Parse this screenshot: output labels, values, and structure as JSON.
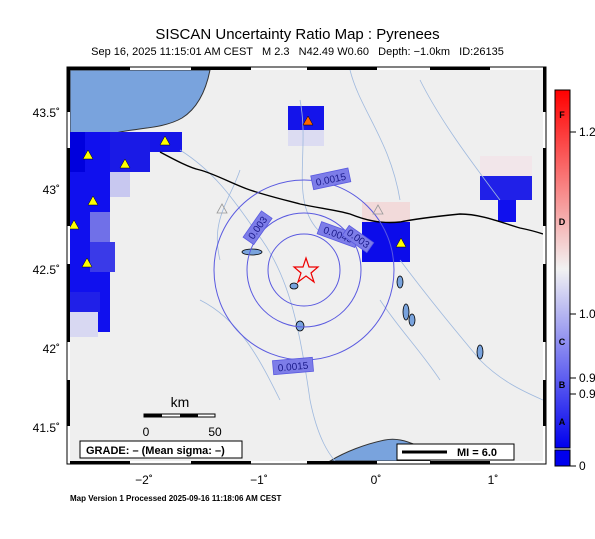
{
  "header": {
    "title": "SISCAN Uncertainty Ratio Map : Pyrenees",
    "subtitle": "Sep 16, 2025 11:15:01 AM CEST   M 2.3   N42.49 W0.60   Depth: −1.0km   ID:26135"
  },
  "axes": {
    "lat_labels": [
      "43.5˚",
      "43˚",
      "42.5˚",
      "42˚",
      "41.5˚"
    ],
    "lon_labels": [
      "−2˚",
      "−1˚",
      "0˚",
      "1˚"
    ]
  },
  "contours": [
    "0.0015",
    "0.003",
    "0.0045",
    "0.003",
    "0.0015"
  ],
  "scale_bar": {
    "title": "km",
    "start": "0",
    "end": "50"
  },
  "grade_box": "GRADE: – (Mean sigma: –)",
  "mi_legend": "MI = 6.0",
  "colorbar": {
    "grade_letters": [
      "F",
      "D",
      "C",
      "B",
      "A"
    ],
    "value_labels": [
      "1.2",
      "1.0",
      "0.9",
      "0.9",
      "0"
    ],
    "colors": {
      "high": "#ff0000",
      "mid": "#f0f0f0",
      "low": "#0000ee",
      "land": "#efefef",
      "sea": "#79a3dd"
    }
  },
  "footer": "Map Version 1 Processed 2025-09-16 11:18:06 AM CEST"
}
